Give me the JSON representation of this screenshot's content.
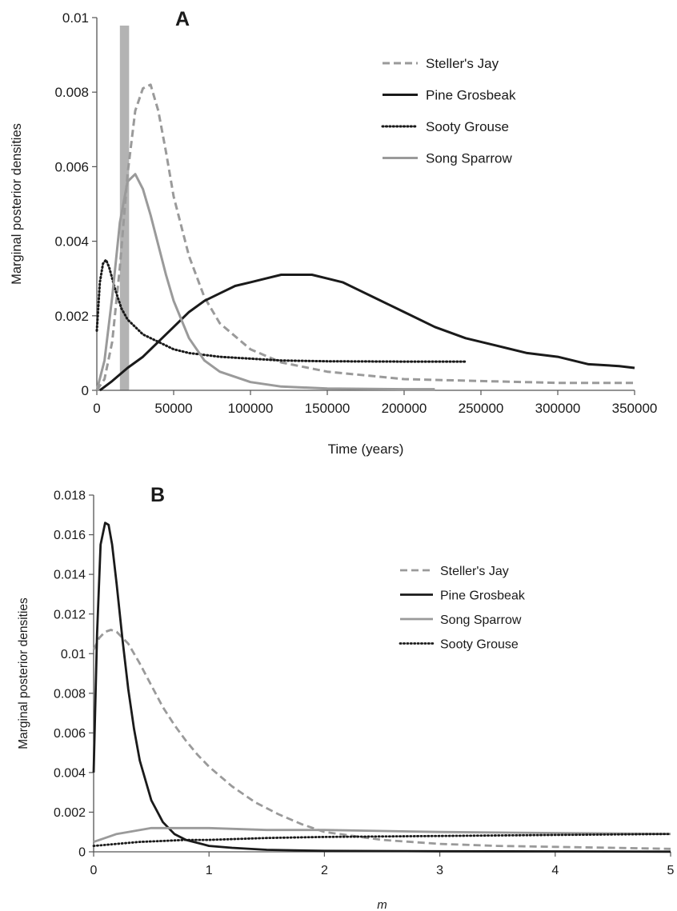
{
  "chart_data": [
    {
      "panel_label": "A",
      "type": "line",
      "xlabel": "Time (years)",
      "ylabel": "Marginal posterior densities",
      "xlim": [
        0,
        350000
      ],
      "ylim": [
        0,
        0.01
      ],
      "xticks": [
        0,
        50000,
        100000,
        150000,
        200000,
        250000,
        300000,
        350000
      ],
      "yticks": [
        0,
        0.002,
        0.004,
        0.006,
        0.008,
        0.01
      ],
      "xtick_labels": [
        "0",
        "50000",
        "100000",
        "150000",
        "200000",
        "250000",
        "300000",
        "350000"
      ],
      "ytick_labels": [
        "0",
        "0.002",
        "0.004",
        "0.006",
        "0.008",
        "0.01"
      ],
      "grid": false,
      "legend_position": "top-right",
      "highlight_band": {
        "x_start": 15000,
        "x_end": 21000,
        "color": "#b3b3b3"
      },
      "series": [
        {
          "name": "Steller's Jay",
          "color": "#9a9a9a",
          "style": "dashed",
          "x": [
            0,
            5000,
            10000,
            15000,
            20000,
            25000,
            30000,
            35000,
            40000,
            45000,
            50000,
            60000,
            70000,
            80000,
            100000,
            120000,
            150000,
            200000,
            250000,
            300000,
            350000
          ],
          "y": [
            0.0,
            0.0003,
            0.0013,
            0.0033,
            0.0058,
            0.0075,
            0.0081,
            0.0082,
            0.0075,
            0.0064,
            0.0052,
            0.0036,
            0.0025,
            0.0018,
            0.0011,
            0.00075,
            0.0005,
            0.0003,
            0.00025,
            0.0002,
            0.0002
          ]
        },
        {
          "name": "Pine Grosbeak",
          "color": "#1a1a1a",
          "style": "solid",
          "x": [
            2000,
            10000,
            20000,
            30000,
            40000,
            50000,
            60000,
            70000,
            80000,
            90000,
            100000,
            110000,
            120000,
            130000,
            140000,
            150000,
            160000,
            170000,
            180000,
            190000,
            200000,
            220000,
            240000,
            260000,
            280000,
            300000,
            320000,
            340000,
            350000
          ],
          "y": [
            0.0,
            0.00025,
            0.0006,
            0.0009,
            0.0013,
            0.0017,
            0.0021,
            0.0024,
            0.0026,
            0.0028,
            0.0029,
            0.003,
            0.0031,
            0.0031,
            0.0031,
            0.003,
            0.0029,
            0.0027,
            0.0025,
            0.0023,
            0.0021,
            0.0017,
            0.0014,
            0.0012,
            0.001,
            0.0009,
            0.0007,
            0.00065,
            0.0006
          ]
        },
        {
          "name": "Sooty Grouse",
          "color": "#1a1a1a",
          "style": "dotted",
          "x": [
            0,
            2000,
            4000,
            6000,
            8000,
            12000,
            16000,
            20000,
            30000,
            40000,
            50000,
            60000,
            70000,
            80000,
            100000,
            120000,
            150000,
            200000,
            240000
          ],
          "y": [
            0.0016,
            0.0029,
            0.0034,
            0.0035,
            0.0033,
            0.0027,
            0.0022,
            0.0019,
            0.0015,
            0.0013,
            0.0011,
            0.001,
            0.00095,
            0.0009,
            0.00085,
            0.0008,
            0.00078,
            0.00077,
            0.00077
          ]
        },
        {
          "name": "Song Sparrow",
          "color": "#9a9a9a",
          "style": "solid",
          "x": [
            0,
            5000,
            10000,
            15000,
            20000,
            25000,
            30000,
            35000,
            40000,
            45000,
            50000,
            60000,
            70000,
            80000,
            100000,
            120000,
            150000,
            200000,
            220000
          ],
          "y": [
            0.0,
            0.0008,
            0.0025,
            0.0045,
            0.0056,
            0.0058,
            0.0054,
            0.0047,
            0.0039,
            0.0031,
            0.0024,
            0.0014,
            0.0008,
            0.0005,
            0.00022,
            0.0001,
            5e-05,
            3e-05,
            3e-05
          ]
        }
      ]
    },
    {
      "panel_label": "B",
      "type": "line",
      "xlabel": "m",
      "ylabel": "Marginal posterior densities",
      "xlim": [
        0,
        5
      ],
      "ylim": [
        0,
        0.018
      ],
      "xticks": [
        0,
        1,
        2,
        3,
        4,
        5
      ],
      "yticks": [
        0,
        0.002,
        0.004,
        0.006,
        0.008,
        0.01,
        0.012,
        0.014,
        0.016,
        0.018
      ],
      "xtick_labels": [
        "0",
        "1",
        "2",
        "3",
        "4",
        "5"
      ],
      "ytick_labels": [
        "0",
        "0.002",
        "0.004",
        "0.006",
        "0.008",
        "0.01",
        "0.012",
        "0.014",
        "0.016",
        "0.018"
      ],
      "grid": false,
      "legend_position": "right",
      "series": [
        {
          "name": "Steller's Jay",
          "color": "#9a9a9a",
          "style": "dashed",
          "x": [
            0,
            0.05,
            0.1,
            0.15,
            0.2,
            0.3,
            0.4,
            0.5,
            0.6,
            0.7,
            0.8,
            0.9,
            1.0,
            1.2,
            1.4,
            1.6,
            1.8,
            2.0,
            2.5,
            3.0,
            3.5,
            4.0,
            4.5,
            5.0
          ],
          "y": [
            0.0102,
            0.0108,
            0.0111,
            0.0112,
            0.0111,
            0.0105,
            0.0095,
            0.0084,
            0.0073,
            0.0064,
            0.0056,
            0.0049,
            0.0043,
            0.0033,
            0.0025,
            0.0019,
            0.0014,
            0.001,
            0.0006,
            0.0004,
            0.0003,
            0.00025,
            0.0002,
            0.00015
          ]
        },
        {
          "name": "Pine Grosbeak",
          "color": "#1a1a1a",
          "style": "solid",
          "x": [
            0,
            0.03,
            0.06,
            0.1,
            0.13,
            0.16,
            0.2,
            0.25,
            0.3,
            0.35,
            0.4,
            0.5,
            0.6,
            0.7,
            0.8,
            1.0,
            1.2,
            1.5,
            2.0,
            3.0,
            4.0,
            5.0
          ],
          "y": [
            0.004,
            0.011,
            0.0155,
            0.0166,
            0.0165,
            0.0155,
            0.0135,
            0.0107,
            0.0082,
            0.0062,
            0.0046,
            0.0026,
            0.0015,
            0.0009,
            0.0006,
            0.0003,
            0.0002,
            0.0001,
            5e-05,
            3e-05,
            2e-05,
            1e-05
          ]
        },
        {
          "name": "Song Sparrow",
          "color": "#9a9a9a",
          "style": "solid",
          "x": [
            0,
            0.1,
            0.2,
            0.3,
            0.4,
            0.5,
            0.6,
            0.8,
            1.0,
            1.5,
            2.0,
            3.0,
            4.0,
            5.0
          ],
          "y": [
            0.0005,
            0.0007,
            0.0009,
            0.001,
            0.0011,
            0.0012,
            0.0012,
            0.0012,
            0.0012,
            0.0011,
            0.0011,
            0.001,
            0.00095,
            0.0009
          ]
        },
        {
          "name": "Sooty Grouse",
          "color": "#1a1a1a",
          "style": "dotted",
          "x": [
            0,
            0.2,
            0.4,
            0.6,
            0.8,
            1.0,
            1.5,
            2.0,
            3.0,
            4.0,
            5.0
          ],
          "y": [
            0.0003,
            0.0004,
            0.0005,
            0.00055,
            0.0006,
            0.0006,
            0.0007,
            0.00075,
            0.0008,
            0.00085,
            0.0009
          ]
        }
      ]
    }
  ]
}
